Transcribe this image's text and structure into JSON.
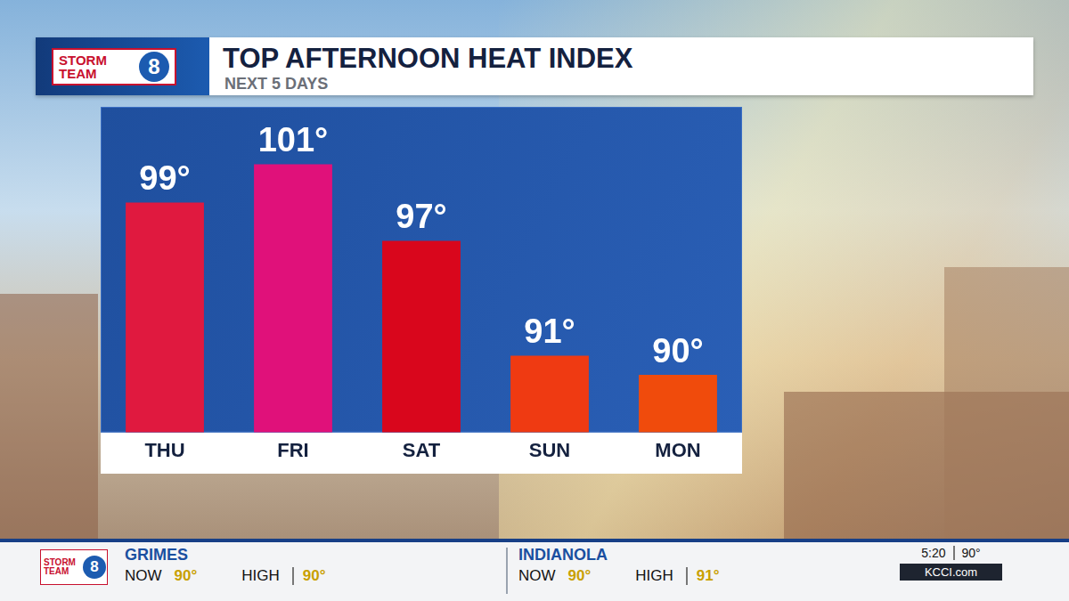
{
  "header": {
    "logo_words": [
      "STORM",
      "TEAM"
    ],
    "logo_number": "8",
    "title": "TOP AFTERNOON HEAT INDEX",
    "subtitle": "NEXT 5 DAYS"
  },
  "chart_data": {
    "type": "bar",
    "categories": [
      "THU",
      "FRI",
      "SAT",
      "SUN",
      "MON"
    ],
    "values": [
      99,
      101,
      97,
      91,
      90
    ],
    "value_labels": [
      "99°",
      "101°",
      "97°",
      "91°",
      "90°"
    ],
    "colors": [
      "#e0193f",
      "#e0117a",
      "#d9061c",
      "#ef3a12",
      "#f04b0c"
    ],
    "ylim": [
      87,
      104
    ],
    "data_labels": true,
    "tick_labels": "x",
    "grid": false
  },
  "ticker": {
    "logo_words": [
      "STORM",
      "TEAM"
    ],
    "logo_number": "8",
    "cities": [
      {
        "name": "GRIMES",
        "now_label": "NOW",
        "now": "90°",
        "high_label": "HIGH",
        "high": "90°"
      },
      {
        "name": "INDIANOLA",
        "now_label": "NOW",
        "now": "90°",
        "high_label": "HIGH",
        "high": "91°"
      }
    ],
    "time": "5:20",
    "temp": "90°",
    "site": "KCCI.com"
  }
}
